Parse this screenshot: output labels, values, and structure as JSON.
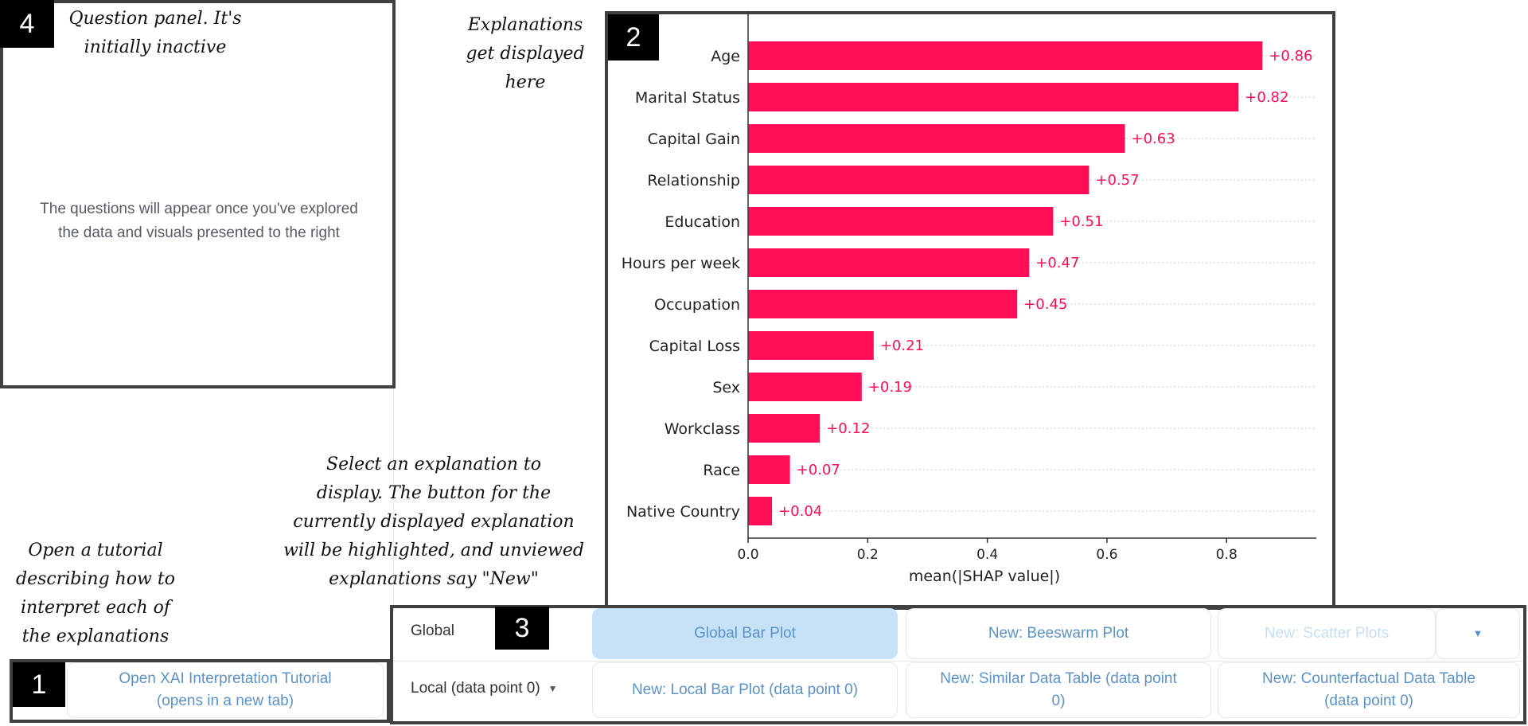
{
  "annotations": {
    "question_panel": [
      "Question panel. It's",
      "initially inactive"
    ],
    "explanations_area": [
      "Explanations",
      "get displayed",
      "here"
    ],
    "select_explanation": [
      "Select an explanation to",
      "display. The button for the",
      "currently displayed explanation",
      "will be highlighted, and unviewed",
      "explanations say \"New\""
    ],
    "tutorial": [
      "Open a tutorial",
      "describing how to",
      "interpret each of",
      "the explanations"
    ]
  },
  "badges": {
    "one": "1",
    "two": "2",
    "three": "3",
    "four": "4"
  },
  "question_panel": {
    "message_line1": "The questions will appear once you've explored",
    "message_line2": "the data and visuals presented to the right"
  },
  "tutorial_button": {
    "line1": "Open XAI Interpretation Tutorial",
    "line2": "(opens in a new tab)"
  },
  "controls": {
    "global_label": "Global",
    "local_label": "Local (data point 0)",
    "global_bar": "Global Bar Plot",
    "beeswarm": "New: Beeswarm Plot",
    "scatter": "New: Scatter Plots",
    "local_bar": "New: Local Bar Plot (data point 0)",
    "similar_line1": "New: Similar Data Table (data point",
    "similar_line2": "0)",
    "counterfactual_line1": "New: Counterfactual Data Table",
    "counterfactual_line2": "(data point 0)"
  },
  "icons": {
    "local_dropdown": "chevron-down-icon",
    "scatter_dropdown": "caret-down-icon"
  },
  "colors": {
    "bar": "#ff0d57",
    "active_button": "#c7e1f7",
    "link_text": "#5b93c9"
  },
  "chart_data": {
    "type": "bar",
    "orientation": "horizontal",
    "categories": [
      "Age",
      "Marital Status",
      "Capital Gain",
      "Relationship",
      "Education",
      "Hours per week",
      "Occupation",
      "Capital Loss",
      "Sex",
      "Workclass",
      "Race",
      "Native Country"
    ],
    "values": [
      0.86,
      0.82,
      0.63,
      0.57,
      0.51,
      0.47,
      0.45,
      0.21,
      0.19,
      0.12,
      0.07,
      0.04
    ],
    "value_labels": [
      "+0.86",
      "+0.82",
      "+0.63",
      "+0.57",
      "+0.51",
      "+0.47",
      "+0.45",
      "+0.21",
      "+0.19",
      "+0.12",
      "+0.07",
      "+0.04"
    ],
    "xlabel": "mean(|SHAP value|)",
    "ylabel": "",
    "xlim": [
      0,
      0.95
    ],
    "xticks": [
      0.0,
      0.2,
      0.4,
      0.6,
      0.8
    ],
    "xtick_labels": [
      "0.0",
      "0.2",
      "0.4",
      "0.6",
      "0.8"
    ],
    "grid": "horizontal dotted",
    "color": "#ff0d57"
  }
}
